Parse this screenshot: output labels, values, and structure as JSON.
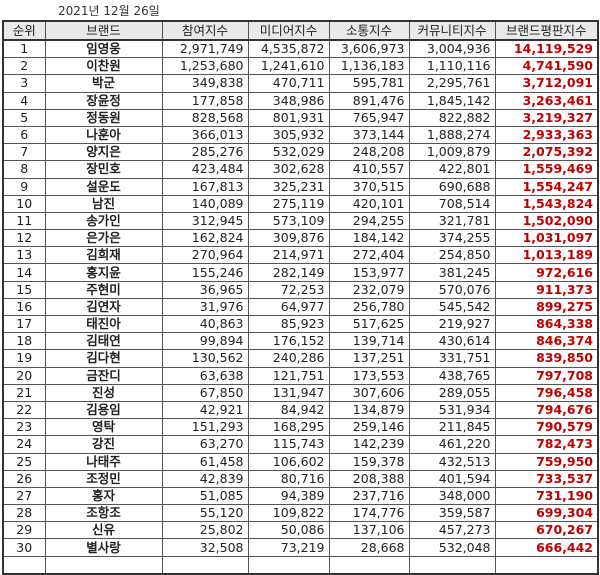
{
  "date": "2021년 12월 26일",
  "colors": {
    "total": "#c00000",
    "header_bg": "#e9e9e9"
  },
  "headers": [
    "순위",
    "브랜드",
    "참여지수",
    "미디어지수",
    "소통지수",
    "커뮤니티지수",
    "브랜드평판지수"
  ],
  "rows": [
    [
      "1",
      "임영웅",
      "2,971,749",
      "4,535,872",
      "3,606,973",
      "3,004,936",
      "14,119,529"
    ],
    [
      "2",
      "이찬원",
      "1,253,680",
      "1,241,610",
      "1,136,183",
      "1,110,116",
      "4,741,590"
    ],
    [
      "3",
      "박군",
      "349,838",
      "470,711",
      "595,781",
      "2,295,761",
      "3,712,091"
    ],
    [
      "4",
      "장윤정",
      "177,858",
      "348,986",
      "891,476",
      "1,845,142",
      "3,263,461"
    ],
    [
      "5",
      "정동원",
      "828,568",
      "801,931",
      "765,947",
      "822,882",
      "3,219,327"
    ],
    [
      "6",
      "나훈아",
      "366,013",
      "305,932",
      "373,144",
      "1,888,274",
      "2,933,363"
    ],
    [
      "7",
      "양지은",
      "285,276",
      "532,029",
      "248,208",
      "1,009,879",
      "2,075,392"
    ],
    [
      "8",
      "장민호",
      "423,484",
      "302,628",
      "410,557",
      "422,801",
      "1,559,469"
    ],
    [
      "9",
      "설운도",
      "167,813",
      "325,231",
      "370,515",
      "690,688",
      "1,554,247"
    ],
    [
      "10",
      "남진",
      "140,089",
      "275,119",
      "420,101",
      "708,514",
      "1,543,824"
    ],
    [
      "11",
      "송가인",
      "312,945",
      "573,109",
      "294,255",
      "321,781",
      "1,502,090"
    ],
    [
      "12",
      "은가은",
      "162,824",
      "309,876",
      "184,142",
      "374,255",
      "1,031,097"
    ],
    [
      "13",
      "김희재",
      "270,964",
      "214,971",
      "272,404",
      "254,850",
      "1,013,189"
    ],
    [
      "14",
      "홍지윤",
      "155,246",
      "282,149",
      "153,977",
      "381,245",
      "972,616"
    ],
    [
      "15",
      "주현미",
      "36,965",
      "72,253",
      "232,079",
      "570,076",
      "911,373"
    ],
    [
      "16",
      "김연자",
      "31,976",
      "64,977",
      "256,780",
      "545,542",
      "899,275"
    ],
    [
      "17",
      "태진아",
      "40,863",
      "85,923",
      "517,625",
      "219,927",
      "864,338"
    ],
    [
      "18",
      "김태연",
      "99,894",
      "176,152",
      "139,714",
      "430,614",
      "846,374"
    ],
    [
      "19",
      "김다현",
      "130,562",
      "240,286",
      "137,251",
      "331,751",
      "839,850"
    ],
    [
      "20",
      "금잔디",
      "63,638",
      "121,751",
      "173,553",
      "438,765",
      "797,708"
    ],
    [
      "21",
      "진성",
      "67,850",
      "131,947",
      "307,606",
      "289,055",
      "796,458"
    ],
    [
      "22",
      "김용임",
      "42,921",
      "84,942",
      "134,879",
      "531,934",
      "794,676"
    ],
    [
      "23",
      "영탁",
      "151,293",
      "168,295",
      "259,146",
      "211,845",
      "790,579"
    ],
    [
      "24",
      "강진",
      "63,270",
      "115,743",
      "142,239",
      "461,220",
      "782,473"
    ],
    [
      "25",
      "나태주",
      "61,458",
      "106,602",
      "159,378",
      "432,513",
      "759,950"
    ],
    [
      "26",
      "조정민",
      "42,839",
      "80,716",
      "208,388",
      "401,594",
      "733,537"
    ],
    [
      "27",
      "홍자",
      "51,085",
      "94,389",
      "237,716",
      "348,000",
      "731,190"
    ],
    [
      "28",
      "조항조",
      "55,120",
      "109,822",
      "174,776",
      "359,587",
      "699,304"
    ],
    [
      "29",
      "신유",
      "25,802",
      "50,086",
      "137,106",
      "457,273",
      "670,267"
    ],
    [
      "30",
      "별사랑",
      "32,508",
      "73,219",
      "28,668",
      "532,048",
      "666,442"
    ]
  ]
}
